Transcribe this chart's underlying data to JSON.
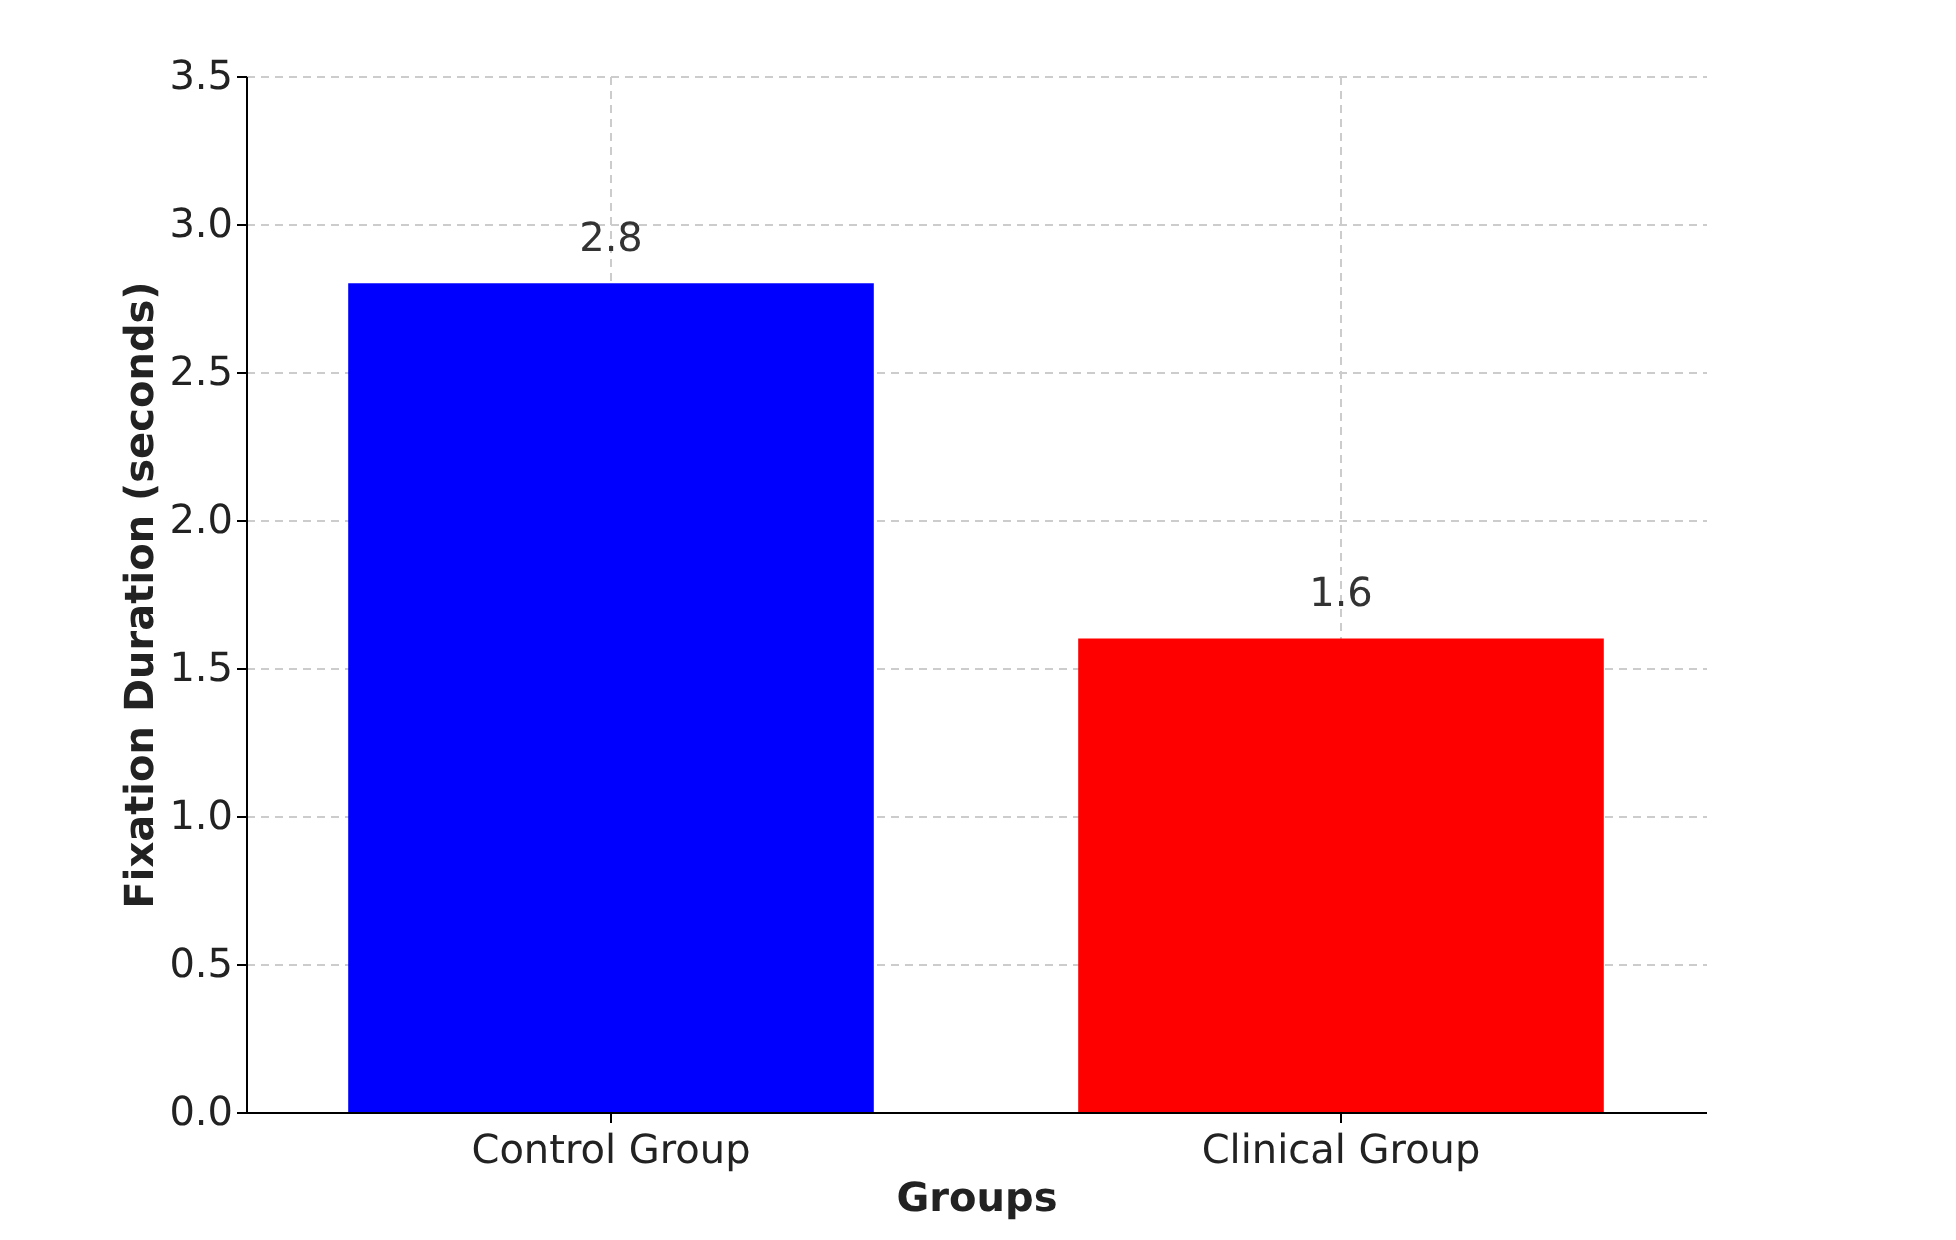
{
  "chart_data": {
    "type": "bar",
    "xlabel": "Groups",
    "ylabel": "Fixation Duration (seconds)",
    "categories": [
      "Control Group",
      "Clinical Group"
    ],
    "values": [
      2.8,
      1.6
    ],
    "colors": [
      "#0000ff",
      "#ff0000"
    ],
    "ylim": [
      0,
      3.5
    ],
    "yticks": [
      {
        "value": 0,
        "label": "0.0"
      },
      {
        "value": 0.5,
        "label": "0.5"
      },
      {
        "value": 1,
        "label": "1.0"
      },
      {
        "value": 1.5,
        "label": "1.5"
      },
      {
        "value": 2,
        "label": "2.0"
      },
      {
        "value": 2.5,
        "label": "2.5"
      },
      {
        "value": 3,
        "label": "3.0"
      },
      {
        "value": 3.5,
        "label": "3.5"
      }
    ],
    "grid": true,
    "data_labels": true
  }
}
